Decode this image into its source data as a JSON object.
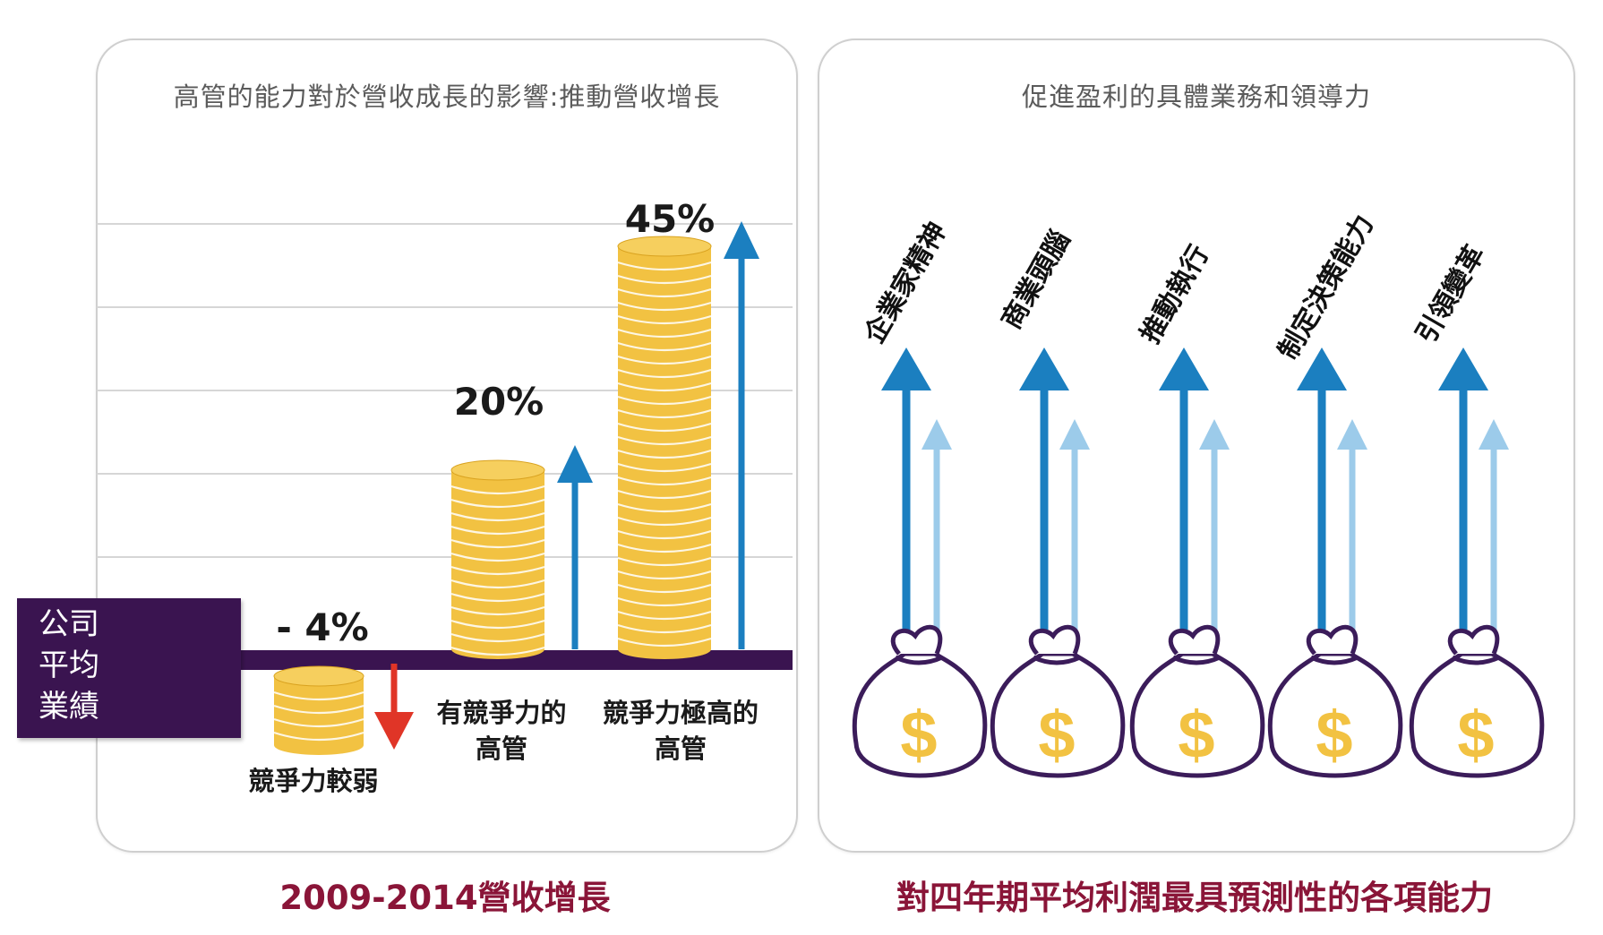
{
  "left": {
    "title": "高管的能力對於營收成長的影響:推動營收增長",
    "caption": "2009-2014營收增長",
    "avg_label": [
      "公司",
      "平均",
      "業績"
    ],
    "bar_labels": [
      [
        "競爭力較弱"
      ],
      [
        "有競爭力的",
        "高管"
      ],
      [
        "競爭力極高的",
        "高管"
      ]
    ]
  },
  "right": {
    "title": "促進盈利的具體業務和領導力",
    "caption": "對四年期平均利潤最具預測性的各項能力",
    "capabilities": [
      "企業家精神",
      "商業頭腦",
      "推動執行",
      "制定決策能力",
      "引領變革"
    ]
  },
  "colors": {
    "coin": "#f2c242",
    "coin_edge": "#d9a21f",
    "baseline": "#3a1450",
    "arrow_up": "#1b7fc0",
    "arrow_up_light": "#9ccbea",
    "arrow_down": "#e03527",
    "bag_outline": "#3b1c5a",
    "dollar": "#f2c242"
  },
  "chart_data": {
    "type": "bar",
    "categories": [
      "競爭力較弱",
      "有競爭力的高管",
      "競爭力極高的高管"
    ],
    "values": [
      -4,
      20,
      45
    ],
    "value_labels": [
      "- 4%",
      "20%",
      "45%"
    ],
    "title": "高管的能力對於營收成長的影響:推動營收增長",
    "xlabel": "2009-2014營收增長",
    "ylabel": "",
    "ylim": [
      -10,
      50
    ],
    "grid": true
  }
}
